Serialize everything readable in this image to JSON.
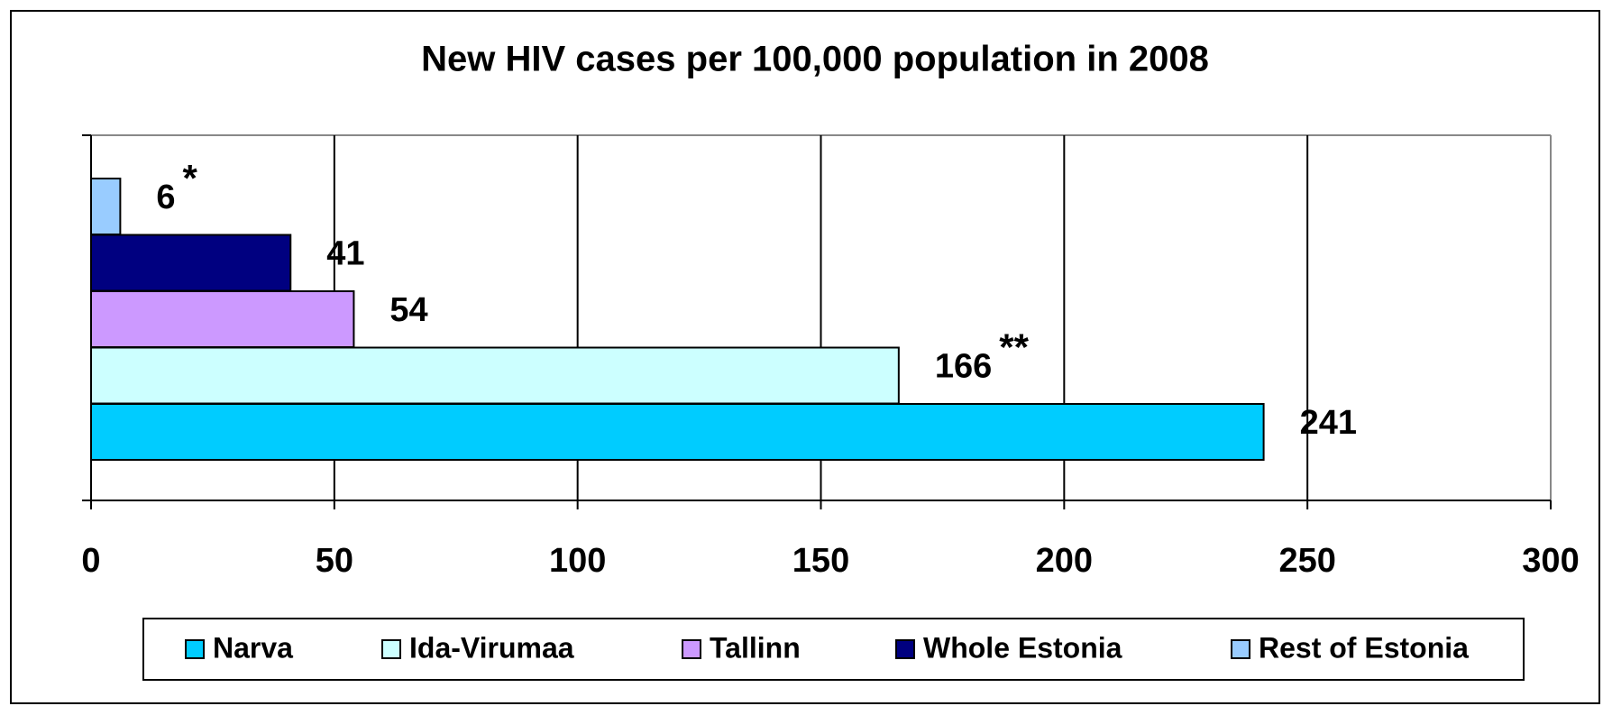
{
  "chart_data": {
    "type": "bar",
    "orientation": "horizontal",
    "title": "New HIV cases per 100,000 population in 2008",
    "series": [
      {
        "name": "Narva",
        "color": "#00ccff",
        "values": [
          241
        ]
      },
      {
        "name": "Ida-Virumaa",
        "color": "#ccffff",
        "values": [
          166
        ],
        "note": "**"
      },
      {
        "name": "Tallinn",
        "color": "#cc99ff",
        "values": [
          54
        ]
      },
      {
        "name": "Whole Estonia",
        "color": "#000080",
        "values": [
          41
        ]
      },
      {
        "name": "Rest of Estonia",
        "color": "#99ccff",
        "values": [
          6
        ],
        "note": "*"
      }
    ],
    "xlim": [
      0,
      300
    ],
    "xticks": [
      0,
      50,
      100,
      150,
      200,
      250,
      300
    ],
    "grid": true,
    "legend": "bottom"
  }
}
